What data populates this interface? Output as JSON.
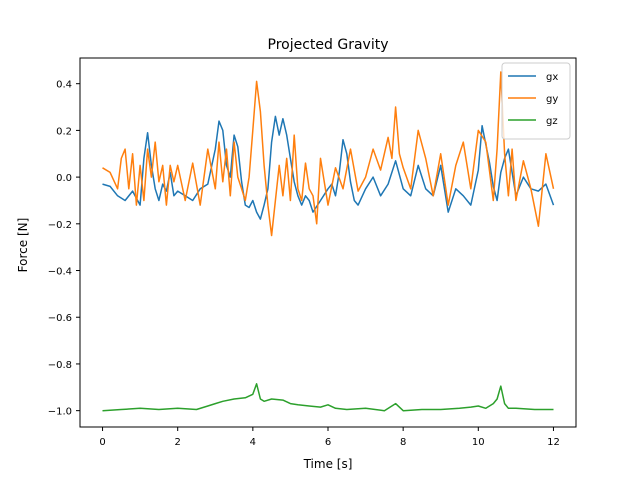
{
  "chart_data": {
    "type": "line",
    "title": "Projected Gravity",
    "xlabel": "Time [s]",
    "ylabel": "Force [N]",
    "xlim": [
      -0.6,
      12.6
    ],
    "ylim": [
      -1.07,
      0.51
    ],
    "xticks": [
      0,
      2,
      4,
      6,
      8,
      10,
      12
    ],
    "xtick_labels": [
      "0",
      "2",
      "4",
      "6",
      "8",
      "10",
      "12"
    ],
    "yticks": [
      -1.0,
      -0.8,
      -0.6,
      -0.4,
      -0.2,
      0.0,
      0.2,
      0.4
    ],
    "ytick_labels": [
      "−1.0",
      "−0.8",
      "−0.6",
      "−0.4",
      "−0.2",
      "0.0",
      "0.2",
      "0.4"
    ],
    "grid": false,
    "legend": "top-right",
    "series": [
      {
        "name": "gx",
        "color": "#1f77b4",
        "x": [
          0,
          0.2,
          0.4,
          0.6,
          0.8,
          1.0,
          1.1,
          1.2,
          1.3,
          1.4,
          1.5,
          1.6,
          1.7,
          1.8,
          1.9,
          2.0,
          2.2,
          2.4,
          2.6,
          2.8,
          3.0,
          3.1,
          3.2,
          3.3,
          3.4,
          3.5,
          3.6,
          3.7,
          3.8,
          3.9,
          4.0,
          4.1,
          4.2,
          4.3,
          4.4,
          4.5,
          4.6,
          4.7,
          4.8,
          4.9,
          5.0,
          5.1,
          5.2,
          5.3,
          5.4,
          5.5,
          5.6,
          5.8,
          6.0,
          6.1,
          6.2,
          6.3,
          6.4,
          6.5,
          6.6,
          6.7,
          6.8,
          7.0,
          7.2,
          7.4,
          7.6,
          7.8,
          8.0,
          8.2,
          8.4,
          8.6,
          8.8,
          9.0,
          9.2,
          9.4,
          9.6,
          9.8,
          10.0,
          10.1,
          10.2,
          10.3,
          10.4,
          10.5,
          10.6,
          10.7,
          10.8,
          10.9,
          11.0,
          11.2,
          11.4,
          11.6,
          11.8,
          12.0
        ],
        "y": [
          -0.03,
          -0.04,
          -0.08,
          -0.1,
          -0.06,
          -0.12,
          0.08,
          0.19,
          0.05,
          -0.05,
          -0.1,
          -0.03,
          -0.06,
          0.02,
          -0.08,
          -0.06,
          -0.08,
          -0.1,
          -0.05,
          -0.03,
          0.12,
          0.24,
          0.2,
          0.05,
          0.0,
          0.18,
          0.13,
          -0.02,
          -0.12,
          -0.13,
          -0.1,
          -0.15,
          -0.18,
          -0.12,
          -0.05,
          0.15,
          0.26,
          0.18,
          0.25,
          0.18,
          0.08,
          -0.02,
          -0.08,
          -0.12,
          -0.08,
          -0.1,
          -0.15,
          -0.1,
          -0.05,
          -0.03,
          -0.08,
          0.02,
          0.16,
          0.1,
          -0.02,
          -0.1,
          -0.12,
          -0.05,
          0.0,
          -0.08,
          -0.03,
          0.07,
          -0.05,
          -0.08,
          0.05,
          -0.05,
          -0.08,
          0.05,
          -0.15,
          -0.05,
          -0.08,
          -0.12,
          0.03,
          0.22,
          0.14,
          0.06,
          -0.04,
          -0.1,
          0.02,
          0.08,
          0.12,
          0.02,
          -0.08,
          0.0,
          -0.05,
          -0.06,
          -0.03,
          -0.12
        ]
      },
      {
        "name": "gy",
        "color": "#ff7f0e",
        "x": [
          0,
          0.2,
          0.4,
          0.5,
          0.6,
          0.7,
          0.8,
          0.9,
          1.0,
          1.1,
          1.2,
          1.3,
          1.4,
          1.5,
          1.6,
          1.7,
          1.8,
          1.9,
          2.0,
          2.2,
          2.4,
          2.6,
          2.8,
          3.0,
          3.1,
          3.2,
          3.3,
          3.4,
          3.5,
          3.6,
          3.7,
          3.8,
          3.9,
          4.0,
          4.1,
          4.2,
          4.3,
          4.4,
          4.5,
          4.6,
          4.7,
          4.8,
          4.9,
          5.0,
          5.1,
          5.2,
          5.3,
          5.4,
          5.5,
          5.6,
          5.7,
          5.8,
          6.0,
          6.2,
          6.4,
          6.6,
          6.8,
          7.0,
          7.2,
          7.4,
          7.6,
          7.7,
          7.8,
          7.9,
          8.0,
          8.2,
          8.4,
          8.6,
          8.8,
          9.0,
          9.2,
          9.4,
          9.6,
          9.8,
          10.0,
          10.2,
          10.4,
          10.5,
          10.6,
          10.7,
          10.8,
          10.9,
          11.0,
          11.2,
          11.4,
          11.6,
          11.8,
          12.0
        ],
        "y": [
          0.04,
          0.02,
          -0.05,
          0.08,
          0.12,
          -0.05,
          0.1,
          -0.12,
          0.05,
          -0.1,
          0.12,
          0.0,
          0.15,
          -0.02,
          0.05,
          -0.12,
          0.05,
          -0.02,
          0.05,
          -0.1,
          0.06,
          -0.12,
          0.12,
          -0.05,
          0.15,
          -0.02,
          0.12,
          -0.08,
          0.15,
          0.0,
          -0.05,
          -0.1,
          0.0,
          0.2,
          0.41,
          0.28,
          0.05,
          -0.12,
          -0.25,
          -0.1,
          0.05,
          -0.08,
          0.08,
          -0.1,
          0.18,
          -0.05,
          -0.1,
          0.06,
          -0.05,
          -0.08,
          -0.2,
          0.08,
          -0.12,
          0.04,
          -0.05,
          0.12,
          -0.06,
          0.0,
          0.12,
          0.03,
          0.17,
          0.08,
          0.3,
          0.1,
          0.04,
          -0.05,
          0.2,
          0.08,
          -0.08,
          0.1,
          -0.12,
          0.05,
          0.15,
          -0.05,
          0.2,
          0.15,
          -0.1,
          0.12,
          0.45,
          0.1,
          -0.08,
          0.12,
          -0.1,
          0.07,
          -0.05,
          -0.21,
          0.1,
          -0.05
        ]
      },
      {
        "name": "gz",
        "color": "#2ca02c",
        "x": [
          0,
          0.5,
          1.0,
          1.5,
          2.0,
          2.5,
          2.8,
          3.0,
          3.2,
          3.5,
          3.8,
          4.0,
          4.1,
          4.2,
          4.3,
          4.5,
          4.8,
          5.0,
          5.2,
          5.5,
          5.8,
          6.0,
          6.2,
          6.5,
          7.0,
          7.5,
          7.8,
          8.0,
          8.5,
          9.0,
          9.5,
          9.8,
          10.0,
          10.2,
          10.4,
          10.5,
          10.6,
          10.7,
          10.8,
          11.0,
          11.5,
          12.0
        ],
        "y": [
          -1.0,
          -0.995,
          -0.99,
          -0.995,
          -0.99,
          -0.995,
          -0.98,
          -0.97,
          -0.96,
          -0.95,
          -0.945,
          -0.93,
          -0.885,
          -0.95,
          -0.96,
          -0.95,
          -0.955,
          -0.97,
          -0.975,
          -0.98,
          -0.985,
          -0.975,
          -0.99,
          -0.995,
          -0.99,
          -1.0,
          -0.97,
          -1.0,
          -0.995,
          -0.995,
          -0.99,
          -0.985,
          -0.98,
          -0.99,
          -0.97,
          -0.95,
          -0.895,
          -0.97,
          -0.99,
          -0.99,
          -0.995,
          -0.995
        ]
      }
    ]
  }
}
